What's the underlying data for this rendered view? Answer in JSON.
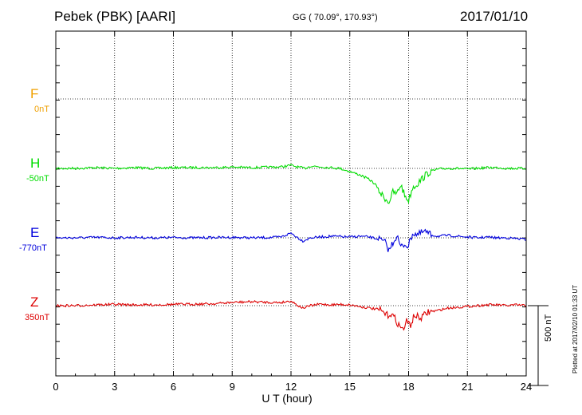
{
  "header": {
    "station": "Pebek (PBK)  [AARI]",
    "coords": "GG ( 70.09°, 170.93°)",
    "date": "2017/01/10"
  },
  "components": [
    {
      "name": "F",
      "offset": "0nT",
      "color": "#f0a000"
    },
    {
      "name": "H",
      "offset": "-50nT",
      "color": "#00dd00"
    },
    {
      "name": "E",
      "offset": "-770nT",
      "color": "#0000dd"
    },
    {
      "name": "Z",
      "offset": "350nT",
      "color": "#dd0000"
    }
  ],
  "scale_bar": {
    "label": "500 nT",
    "value_nT": 500
  },
  "plotted_note": "Plotted at 2017/02/10 01:33 UT",
  "chart_data": {
    "type": "line",
    "xlabel": "U T (hour)",
    "xlim": [
      0,
      24
    ],
    "xticks": [
      0,
      3,
      6,
      9,
      12,
      15,
      18,
      21,
      24
    ],
    "y_units": "nT (deviation from baseline)",
    "series": [
      {
        "name": "H",
        "color": "#00dd00",
        "x": [
          0,
          1,
          2,
          3,
          4,
          5,
          6,
          7,
          8,
          9,
          10,
          11,
          11.5,
          12,
          12.3,
          12.7,
          13,
          13.5,
          14,
          14.5,
          15,
          15.5,
          16,
          16.3,
          16.6,
          16.9,
          17.0,
          17.2,
          17.4,
          17.6,
          17.8,
          18.0,
          18.2,
          18.5,
          18.8,
          19.1,
          19.5,
          20,
          20.5,
          21,
          21.5,
          22,
          22.5,
          23,
          23.5,
          24
        ],
        "y": [
          0,
          0,
          5,
          0,
          5,
          0,
          5,
          5,
          5,
          8,
          5,
          8,
          10,
          20,
          10,
          0,
          15,
          10,
          5,
          0,
          -20,
          -40,
          -70,
          -100,
          -160,
          -200,
          -210,
          -150,
          -160,
          -100,
          -170,
          -200,
          -120,
          -90,
          -50,
          -20,
          -5,
          0,
          0,
          -5,
          0,
          5,
          5,
          0,
          0,
          0
        ]
      },
      {
        "name": "E",
        "color": "#0000dd",
        "x": [
          0,
          1,
          2,
          3,
          4,
          5,
          6,
          7,
          8,
          9,
          10,
          11,
          11.5,
          12,
          12.3,
          12.6,
          13,
          13.5,
          14,
          14.5,
          15,
          15.5,
          16,
          16.5,
          16.8,
          17.0,
          17.2,
          17.4,
          17.6,
          17.8,
          18.0,
          18.2,
          18.5,
          18.8,
          19.1,
          19.5,
          20,
          20.5,
          21,
          21.5,
          22,
          22.5,
          23,
          23.5,
          24
        ],
        "y": [
          0,
          0,
          3,
          0,
          3,
          0,
          2,
          0,
          2,
          3,
          0,
          2,
          5,
          30,
          5,
          -20,
          0,
          5,
          10,
          8,
          5,
          10,
          5,
          -10,
          -30,
          -80,
          -30,
          15,
          -60,
          -40,
          -50,
          30,
          20,
          40,
          20,
          10,
          15,
          10,
          5,
          0,
          5,
          0,
          0,
          -5,
          -10
        ]
      },
      {
        "name": "Z",
        "color": "#dd0000",
        "x": [
          0,
          1,
          2,
          3,
          4,
          5,
          6,
          7,
          8,
          9,
          10,
          11,
          11.5,
          12,
          12.3,
          12.6,
          13,
          13.5,
          14,
          14.5,
          15,
          15.5,
          16,
          16.5,
          16.9,
          17.1,
          17.3,
          17.5,
          17.7,
          17.9,
          18.1,
          18.3,
          18.6,
          19.0,
          19.5,
          20,
          20.5,
          21,
          21.5,
          22,
          22.5,
          23,
          23.5,
          24
        ],
        "y": [
          0,
          0,
          5,
          8,
          5,
          5,
          8,
          10,
          12,
          20,
          25,
          20,
          20,
          30,
          5,
          -15,
          0,
          10,
          5,
          8,
          5,
          -5,
          -15,
          -25,
          -60,
          -50,
          -80,
          -120,
          -150,
          -100,
          -120,
          -60,
          -80,
          -40,
          -30,
          -15,
          -10,
          -5,
          0,
          5,
          5,
          0,
          5,
          0
        ]
      }
    ]
  }
}
